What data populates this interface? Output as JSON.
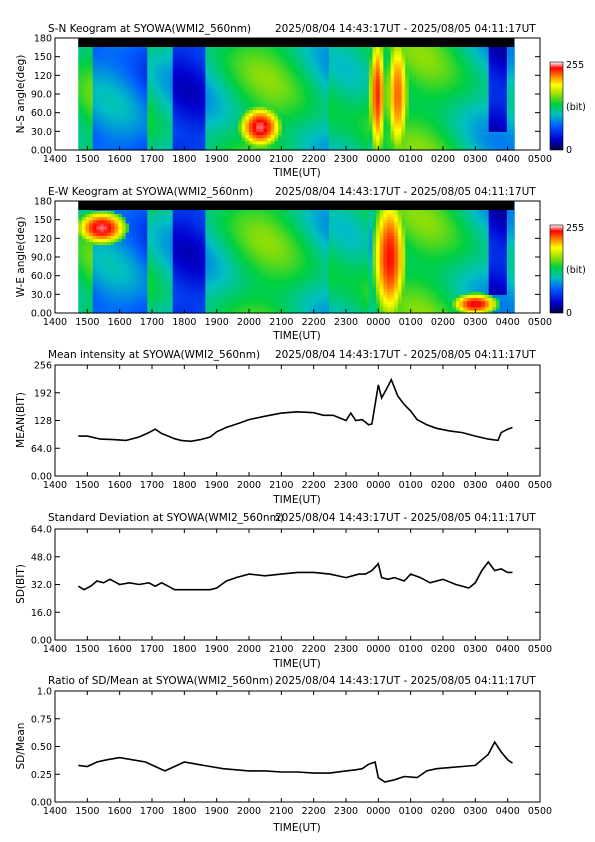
{
  "x_ticks": [
    "1400",
    "1500",
    "1600",
    "1700",
    "1800",
    "1900",
    "2000",
    "2100",
    "2200",
    "2300",
    "0000",
    "0100",
    "0200",
    "0300",
    "0400",
    "0500"
  ],
  "x_label": "TIME(UT)",
  "time_range": "2025/08/04 14:43:17UT - 2025/08/05 04:11:17UT",
  "colorbar": {
    "max_label": "255",
    "min_label": "0",
    "unit": "(bit)"
  },
  "chart_data": [
    {
      "type": "heatmap",
      "title": "S-N Keogram at SYOWA(WMI2_560nm)",
      "ylabel": "N-S angle(deg)",
      "y_ticks": [
        "0.00",
        "30.0",
        "60.0",
        "90.0",
        "120",
        "150",
        "180"
      ],
      "ylim": [
        0,
        180
      ],
      "xlim_hours": [
        14,
        29
      ],
      "z_range": [
        0,
        255
      ],
      "colorscale": "rainbow-to-white",
      "description_blobs": [
        {
          "x": [
            19.8,
            20.9
          ],
          "y": [
            10,
            65
          ],
          "value": 245
        },
        {
          "x": [
            23.75,
            24.2
          ],
          "y": [
            0,
            180
          ],
          "value": 230
        },
        {
          "x": [
            24.3,
            24.9
          ],
          "y": [
            0,
            180
          ],
          "value": 220
        }
      ]
    },
    {
      "type": "heatmap",
      "title": "E-W Keogram at SYOWA(WMI2_560nm)",
      "ylabel": "W-E angle(deg)",
      "y_ticks": [
        "0.00",
        "30.0",
        "60.0",
        "90.0",
        "120",
        "150",
        "180"
      ],
      "ylim": [
        0,
        180
      ],
      "xlim_hours": [
        14,
        29
      ],
      "z_range": [
        0,
        255
      ],
      "colorscale": "rainbow-to-white",
      "description_blobs": [
        {
          "x": [
            14.8,
            16.1
          ],
          "y": [
            115,
            160
          ],
          "value": 245
        },
        {
          "x": [
            23.9,
            24.8
          ],
          "y": [
            0,
            180
          ],
          "value": 235
        },
        {
          "x": [
            26.4,
            27.6
          ],
          "y": [
            0,
            30
          ],
          "value": 240
        }
      ]
    },
    {
      "type": "line",
      "title": "Mean intensity at SYOWA(WMI2_560nm)",
      "ylabel": "MEAN(BIT)",
      "y_ticks": [
        "0.00",
        "64.0",
        "128",
        "192",
        "256"
      ],
      "ylim": [
        0,
        256
      ],
      "xlim_hours": [
        14,
        29
      ],
      "series": [
        {
          "x": [
            14.72,
            15.0,
            15.4,
            15.8,
            16.2,
            16.6,
            16.9,
            17.1,
            17.3,
            17.5,
            17.7,
            17.9,
            18.2,
            18.5,
            18.8,
            19.0,
            19.3,
            19.7,
            20.0,
            20.5,
            21.0,
            21.5,
            22.0,
            22.3,
            22.6,
            22.8,
            23.0,
            23.15,
            23.3,
            23.5,
            23.7,
            23.8,
            23.9,
            24.0,
            24.1,
            24.25,
            24.4,
            24.6,
            24.8,
            25.0,
            25.2,
            25.5,
            25.8,
            26.2,
            26.6,
            27.0,
            27.4,
            27.7,
            27.8,
            28.0,
            28.15
          ],
          "y": [
            92,
            92,
            85,
            84,
            82,
            90,
            100,
            108,
            98,
            92,
            86,
            82,
            80,
            84,
            90,
            102,
            112,
            122,
            130,
            138,
            145,
            148,
            146,
            140,
            140,
            134,
            128,
            145,
            128,
            130,
            118,
            120,
            165,
            210,
            180,
            200,
            222,
            185,
            165,
            150,
            130,
            118,
            110,
            104,
            100,
            92,
            85,
            82,
            100,
            108,
            112
          ]
        }
      ]
    },
    {
      "type": "line",
      "title": "Standard Deviation at SYOWA(WMI2_560nm)",
      "ylabel": "SD(BIT)",
      "y_ticks": [
        "0.00",
        "16.0",
        "32.0",
        "48.0",
        "64.0"
      ],
      "ylim": [
        0,
        64
      ],
      "xlim_hours": [
        14,
        29
      ],
      "series": [
        {
          "x": [
            14.72,
            14.9,
            15.1,
            15.3,
            15.5,
            15.7,
            16.0,
            16.3,
            16.6,
            16.9,
            17.1,
            17.3,
            17.5,
            17.7,
            18.0,
            18.3,
            18.6,
            18.8,
            19.0,
            19.3,
            19.6,
            20.0,
            20.5,
            21.0,
            21.5,
            22.0,
            22.5,
            23.0,
            23.2,
            23.4,
            23.6,
            23.8,
            24.0,
            24.1,
            24.3,
            24.5,
            24.8,
            25.0,
            25.3,
            25.6,
            26.0,
            26.4,
            26.8,
            27.0,
            27.2,
            27.4,
            27.6,
            27.8,
            28.0,
            28.15
          ],
          "y": [
            31,
            29,
            31,
            34,
            33,
            35,
            32,
            33,
            32,
            33,
            31,
            33,
            31,
            29,
            29,
            29,
            29,
            29,
            30,
            34,
            36,
            38,
            37,
            38,
            39,
            39,
            38,
            36,
            37,
            38,
            38,
            40,
            44,
            36,
            35,
            36,
            34,
            38,
            36,
            33,
            35,
            32,
            30,
            33,
            40,
            45,
            40,
            41,
            39,
            39
          ]
        }
      ]
    },
    {
      "type": "line",
      "title": "Ratio of SD/Mean at SYOWA(WMI2_560nm)",
      "ylabel": "SD/Mean",
      "y_ticks": [
        "0.00",
        "0.25",
        "0.50",
        "0.75",
        "1.0"
      ],
      "ylim": [
        0,
        1
      ],
      "xlim_hours": [
        14,
        29
      ],
      "series": [
        {
          "x": [
            14.72,
            15.0,
            15.3,
            15.6,
            16.0,
            16.4,
            16.8,
            17.1,
            17.4,
            17.7,
            18.0,
            18.4,
            18.8,
            19.2,
            19.6,
            20.0,
            20.5,
            21.0,
            21.5,
            22.0,
            22.5,
            23.0,
            23.3,
            23.5,
            23.7,
            23.9,
            24.0,
            24.2,
            24.5,
            24.8,
            25.2,
            25.5,
            25.8,
            26.2,
            26.6,
            27.0,
            27.4,
            27.6,
            27.8,
            28.0,
            28.15
          ],
          "y": [
            0.33,
            0.32,
            0.36,
            0.38,
            0.4,
            0.38,
            0.36,
            0.32,
            0.28,
            0.32,
            0.36,
            0.34,
            0.32,
            0.3,
            0.29,
            0.28,
            0.28,
            0.27,
            0.27,
            0.26,
            0.26,
            0.28,
            0.29,
            0.3,
            0.34,
            0.36,
            0.22,
            0.18,
            0.2,
            0.23,
            0.22,
            0.28,
            0.3,
            0.31,
            0.32,
            0.33,
            0.43,
            0.54,
            0.45,
            0.38,
            0.35
          ]
        }
      ]
    }
  ]
}
